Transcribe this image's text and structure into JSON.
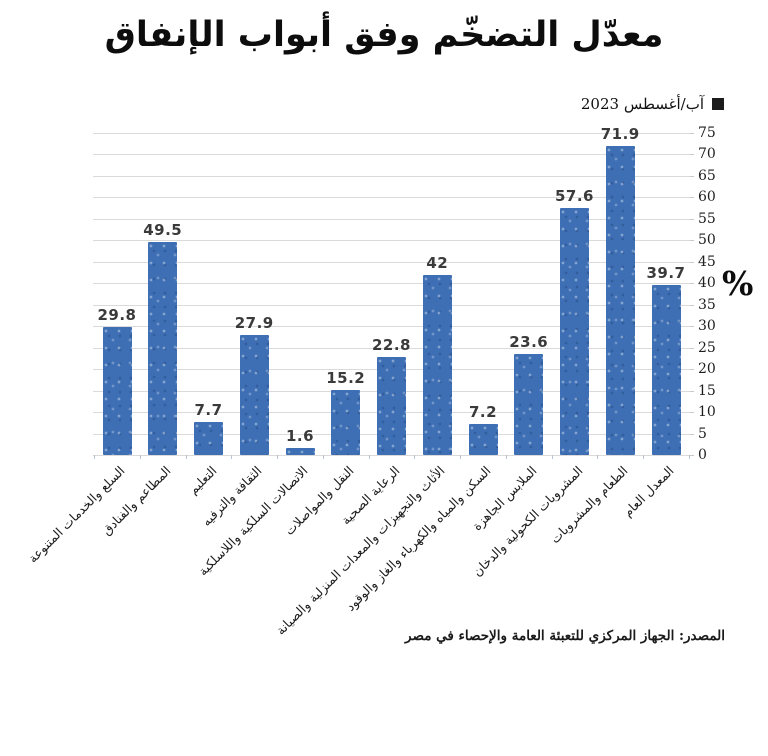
{
  "header": {
    "title": "معدّل التضخّم وفق أبواب الإنفاق"
  },
  "legend": {
    "label": "آب/أغسطس 2023",
    "marker_color": "#1c1c1c"
  },
  "axis": {
    "unit_symbol": "%",
    "ymin": 0,
    "ymax": 75,
    "ystep": 5
  },
  "source": {
    "text": "المصدر: الجهاز المركزي للتعبئة العامة والإحصاء في مصر"
  },
  "colors": {
    "bar": "#3e6fb5",
    "grid": "#dadada",
    "axis_tick": "#c9c9c9",
    "value_label": "#3a3a3a",
    "text": "#1a1a1a"
  },
  "chart_data": {
    "type": "bar",
    "title": "معدّل التضخّم وفق أبواب الإنفاق",
    "series_name": "آب/أغسطس 2023",
    "categories": [
      "السلع والخدمات المتنوعة",
      "المطاعم والفنادق",
      "التعليم",
      "الثقافة والترفيه",
      "الاتصالات السلكية واللاسلكية",
      "النقل والمواصلات",
      "الرعاية الصحية",
      "الأثاث والتجهيزات والمعدات المنزلية والصيانة",
      "السكن والمياه والكهرباء والغاز والوقود",
      "الملابس الجاهزة",
      "المشروبات الكحولية والدخان",
      "الطعام والمشروبات",
      "المعدل العام"
    ],
    "values": [
      29.8,
      49.5,
      7.7,
      27.9,
      1.6,
      15.2,
      22.8,
      42,
      7.2,
      23.6,
      57.6,
      71.9,
      39.7
    ],
    "ylim": [
      0,
      75
    ],
    "ytick_step": 5,
    "ylabel": "%",
    "grid": true,
    "legend_position": "top-right",
    "bar_color": "#3e6fb5"
  }
}
